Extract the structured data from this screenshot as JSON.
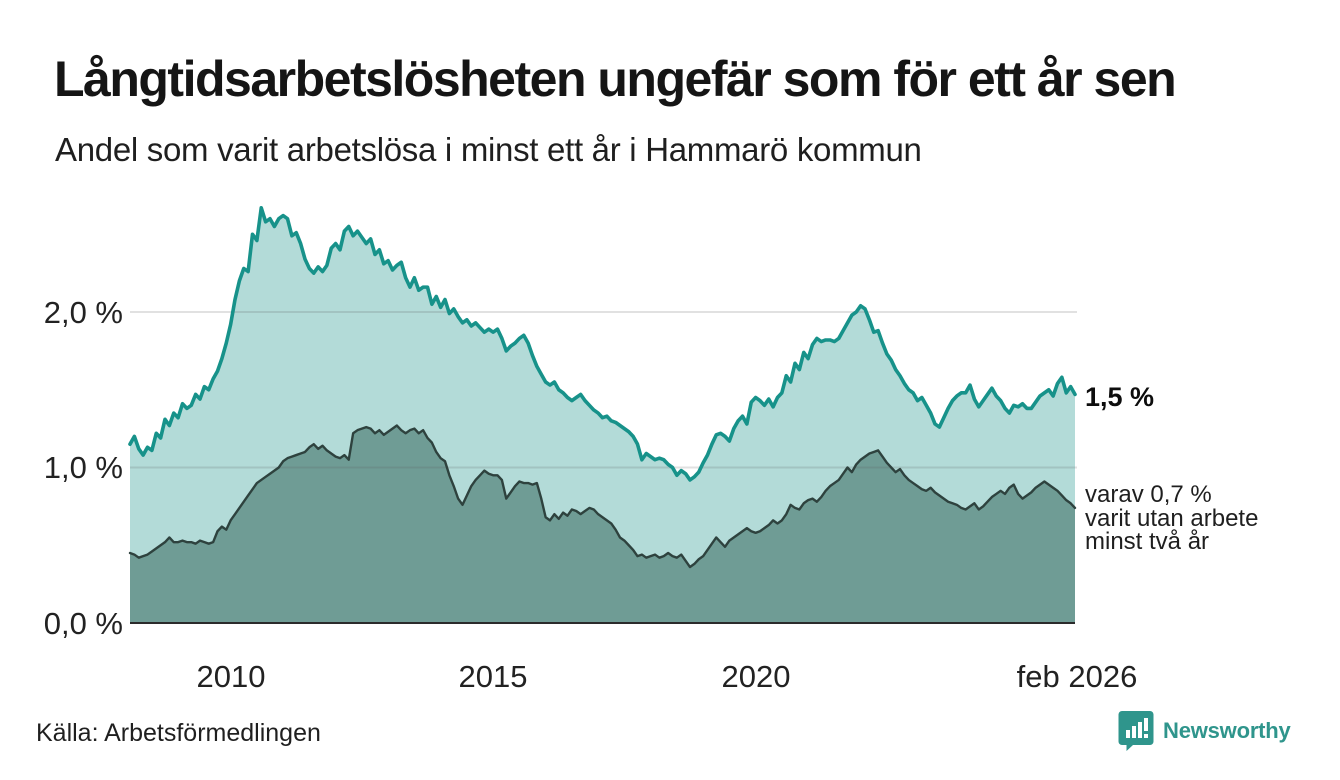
{
  "header": {
    "title": "Långtidsarbetslösheten ungefär som för ett år sen",
    "subtitle": "Andel som varit arbetslösa i minst ett år i Hammarö kommun"
  },
  "annotations": {
    "latest_total": "1,5 %",
    "two_year_line1": "varav 0,7 %",
    "two_year_line2": "varit utan arbete",
    "two_year_line3": "minst två år"
  },
  "footer": {
    "source": "Källa: Arbetsförmedlingen",
    "brand": "Newsworthy"
  },
  "colors": {
    "line_1yr": "#17928a",
    "fill_1yr": "rgba(23,146,138,0.33)",
    "line_2yr": "#2e423e",
    "fill_2yr": "#6f9c95",
    "gridline": "rgba(90,90,90,0.18)",
    "axis": "#2b2b2b",
    "brand_teal": "#2f958c"
  },
  "chart_data": {
    "type": "area",
    "title": "Långtidsarbetslösheten ungefär som för ett år sen",
    "subtitle": "Andel som varit arbetslösa i minst ett år i Hammarö kommun",
    "unit": "%",
    "cadence": "monthly",
    "x_start": "2008-02",
    "x_end": "2026-02",
    "ylim": [
      0,
      2.8
    ],
    "grid": "horizontal",
    "legend_position": "right-annotations",
    "y_ticks": [
      {
        "value": 0,
        "label": "0,0 %"
      },
      {
        "value": 1,
        "label": "1,0 %"
      },
      {
        "value": 2,
        "label": "2,0 %"
      }
    ],
    "x_ticks": [
      {
        "t": 2010.0,
        "label": "2010"
      },
      {
        "t": 2015.0,
        "label": "2015"
      },
      {
        "t": 2020.0,
        "label": "2020"
      },
      {
        "t": 2026.083,
        "label": "feb 2026"
      }
    ],
    "series": [
      {
        "name": "Andel arbetslösa minst ett år",
        "last_value_label": "1,5 %",
        "values": [
          1.15,
          1.2,
          1.12,
          1.08,
          1.13,
          1.11,
          1.22,
          1.19,
          1.31,
          1.27,
          1.35,
          1.32,
          1.41,
          1.38,
          1.4,
          1.47,
          1.44,
          1.52,
          1.5,
          1.57,
          1.62,
          1.7,
          1.8,
          1.92,
          2.08,
          2.2,
          2.28,
          2.26,
          2.5,
          2.46,
          2.67,
          2.58,
          2.6,
          2.55,
          2.6,
          2.62,
          2.6,
          2.49,
          2.51,
          2.44,
          2.34,
          2.28,
          2.25,
          2.29,
          2.26,
          2.3,
          2.41,
          2.44,
          2.4,
          2.52,
          2.55,
          2.49,
          2.52,
          2.48,
          2.44,
          2.47,
          2.37,
          2.4,
          2.31,
          2.33,
          2.27,
          2.3,
          2.32,
          2.22,
          2.16,
          2.22,
          2.14,
          2.16,
          2.16,
          2.05,
          2.1,
          2.03,
          2.08,
          1.99,
          2.02,
          1.97,
          1.93,
          1.95,
          1.91,
          1.93,
          1.9,
          1.87,
          1.89,
          1.87,
          1.89,
          1.83,
          1.75,
          1.78,
          1.8,
          1.83,
          1.85,
          1.8,
          1.72,
          1.65,
          1.6,
          1.55,
          1.53,
          1.55,
          1.5,
          1.48,
          1.45,
          1.43,
          1.45,
          1.47,
          1.43,
          1.4,
          1.37,
          1.35,
          1.32,
          1.33,
          1.3,
          1.29,
          1.27,
          1.25,
          1.23,
          1.2,
          1.15,
          1.05,
          1.09,
          1.07,
          1.05,
          1.06,
          1.05,
          1.02,
          1.0,
          0.95,
          0.98,
          0.96,
          0.92,
          0.94,
          0.97,
          1.03,
          1.08,
          1.15,
          1.21,
          1.22,
          1.2,
          1.17,
          1.25,
          1.3,
          1.33,
          1.28,
          1.42,
          1.45,
          1.43,
          1.4,
          1.44,
          1.39,
          1.45,
          1.48,
          1.59,
          1.55,
          1.67,
          1.63,
          1.74,
          1.7,
          1.79,
          1.83,
          1.81,
          1.82,
          1.82,
          1.81,
          1.83,
          1.88,
          1.93,
          1.98,
          2.0,
          2.04,
          2.02,
          1.95,
          1.87,
          1.88,
          1.8,
          1.73,
          1.69,
          1.63,
          1.59,
          1.54,
          1.5,
          1.48,
          1.43,
          1.45,
          1.4,
          1.35,
          1.28,
          1.26,
          1.32,
          1.38,
          1.43,
          1.46,
          1.48,
          1.48,
          1.53,
          1.44,
          1.39,
          1.43,
          1.47,
          1.51,
          1.46,
          1.43,
          1.38,
          1.35,
          1.4,
          1.39,
          1.41,
          1.38,
          1.38,
          1.42,
          1.46,
          1.48,
          1.5,
          1.46,
          1.54,
          1.58,
          1.48,
          1.52,
          1.47
        ]
      },
      {
        "name": "varav varit utan arbete minst två år",
        "last_value_label": "0,7 %",
        "values": [
          0.45,
          0.44,
          0.42,
          0.43,
          0.44,
          0.46,
          0.48,
          0.5,
          0.52,
          0.55,
          0.52,
          0.52,
          0.53,
          0.52,
          0.52,
          0.51,
          0.53,
          0.52,
          0.51,
          0.52,
          0.59,
          0.62,
          0.6,
          0.66,
          0.7,
          0.74,
          0.78,
          0.82,
          0.86,
          0.9,
          0.92,
          0.94,
          0.96,
          0.98,
          1.0,
          1.04,
          1.06,
          1.07,
          1.08,
          1.09,
          1.1,
          1.13,
          1.15,
          1.12,
          1.14,
          1.11,
          1.09,
          1.07,
          1.06,
          1.08,
          1.05,
          1.22,
          1.24,
          1.25,
          1.26,
          1.25,
          1.22,
          1.24,
          1.21,
          1.23,
          1.25,
          1.27,
          1.24,
          1.22,
          1.24,
          1.25,
          1.22,
          1.24,
          1.19,
          1.16,
          1.1,
          1.06,
          1.04,
          0.95,
          0.88,
          0.8,
          0.76,
          0.82,
          0.88,
          0.92,
          0.95,
          0.98,
          0.96,
          0.95,
          0.95,
          0.92,
          0.8,
          0.84,
          0.88,
          0.91,
          0.9,
          0.9,
          0.89,
          0.9,
          0.8,
          0.68,
          0.66,
          0.7,
          0.67,
          0.71,
          0.69,
          0.73,
          0.72,
          0.7,
          0.72,
          0.74,
          0.73,
          0.7,
          0.68,
          0.66,
          0.64,
          0.6,
          0.55,
          0.53,
          0.5,
          0.47,
          0.43,
          0.44,
          0.42,
          0.43,
          0.44,
          0.42,
          0.43,
          0.45,
          0.43,
          0.42,
          0.44,
          0.4,
          0.36,
          0.38,
          0.41,
          0.43,
          0.47,
          0.51,
          0.55,
          0.52,
          0.49,
          0.53,
          0.55,
          0.57,
          0.59,
          0.61,
          0.59,
          0.58,
          0.59,
          0.61,
          0.63,
          0.66,
          0.64,
          0.66,
          0.7,
          0.76,
          0.74,
          0.73,
          0.77,
          0.79,
          0.8,
          0.78,
          0.81,
          0.85,
          0.88,
          0.9,
          0.92,
          0.96,
          1.0,
          0.97,
          1.02,
          1.05,
          1.07,
          1.09,
          1.1,
          1.11,
          1.07,
          1.03,
          1.0,
          0.97,
          0.99,
          0.95,
          0.92,
          0.9,
          0.88,
          0.86,
          0.85,
          0.87,
          0.84,
          0.82,
          0.8,
          0.78,
          0.77,
          0.76,
          0.74,
          0.73,
          0.75,
          0.77,
          0.73,
          0.75,
          0.78,
          0.81,
          0.83,
          0.85,
          0.83,
          0.87,
          0.89,
          0.83,
          0.8,
          0.82,
          0.84,
          0.87,
          0.89,
          0.91,
          0.89,
          0.87,
          0.85,
          0.82,
          0.79,
          0.77,
          0.74
        ]
      }
    ]
  }
}
